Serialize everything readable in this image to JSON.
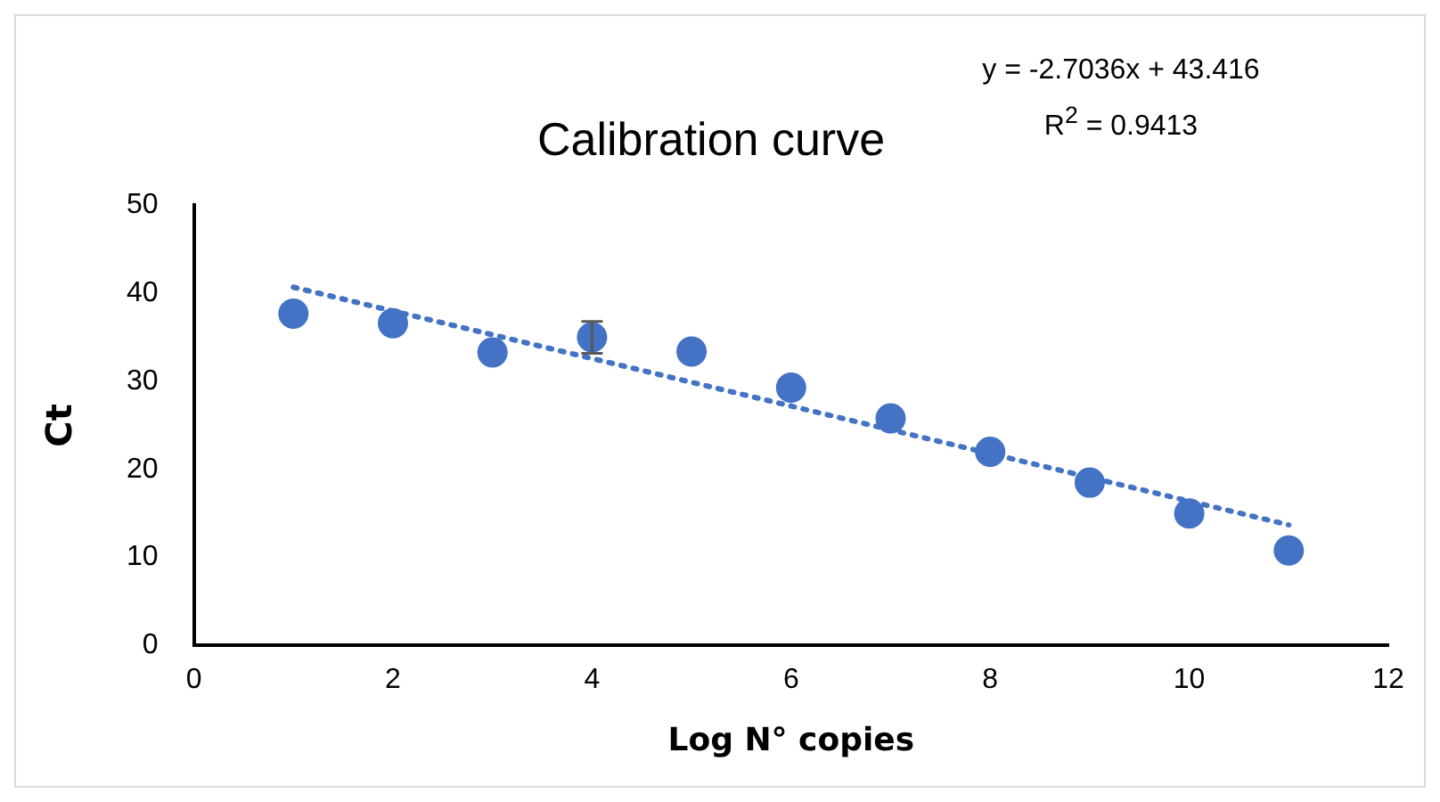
{
  "chart_data": {
    "type": "scatter",
    "title": "Calibration curve",
    "xlabel": "Log N° copies",
    "ylabel": "Ct",
    "annotations": [
      "y = -2.7036x + 43.416",
      "R$^{2}$ = 0.9413"
    ],
    "xlim": [
      0,
      12
    ],
    "xticks": [
      0,
      2,
      4,
      6,
      8,
      10,
      12
    ],
    "ylim": [
      0,
      50
    ],
    "yticks": [
      0,
      10,
      20,
      30,
      40,
      50
    ],
    "grid": false,
    "legend": false,
    "marker": "circle",
    "series": [
      {
        "color": "#4472c4",
        "x": [
          1,
          2,
          3,
          4,
          5,
          6,
          7,
          8,
          9,
          10,
          11
        ],
        "values": [
          37.7,
          36.6,
          33.3,
          35.0,
          33.4,
          29.3,
          25.8,
          22.0,
          18.5,
          15.0,
          10.8
        ],
        "errors": [
          null,
          null,
          null,
          1.8,
          null,
          null,
          null,
          null,
          null,
          null,
          null
        ]
      },
      {
        "type": "line",
        "color": "#4472c4",
        "line_style": "dotted",
        "marker": "none",
        "x": [
          1,
          11
        ],
        "values": [
          40.7,
          13.7
        ]
      }
    ]
  }
}
